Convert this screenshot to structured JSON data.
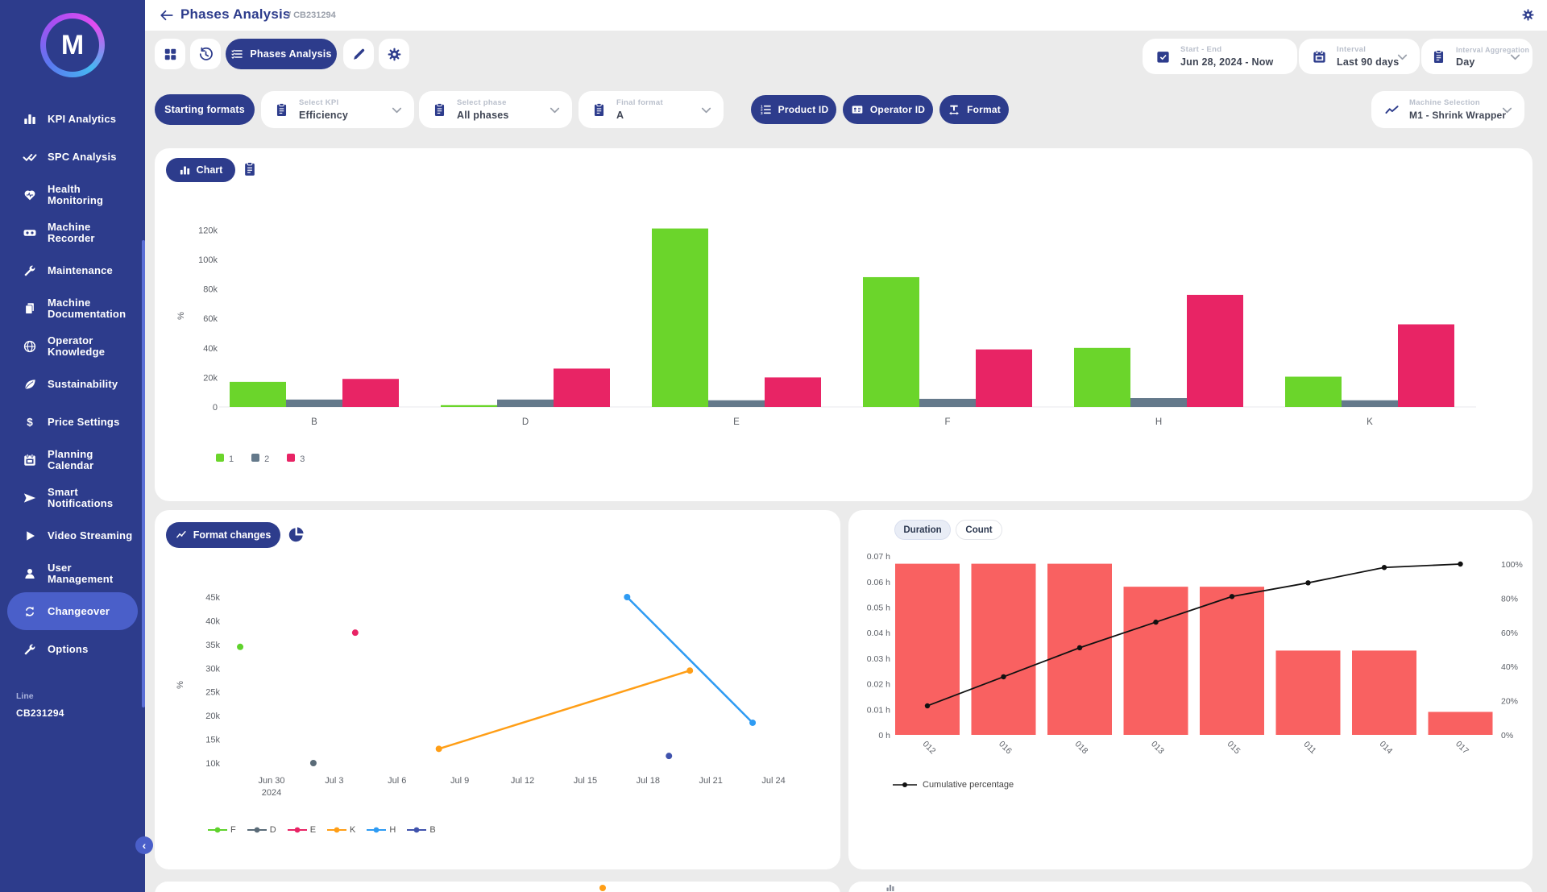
{
  "colors": {
    "accent": "#2d3c8c",
    "active_item": "#4a5fc9",
    "page_bg": "#ebebeb",
    "panel_bg": "#ffffff",
    "green": "#6bd52b",
    "slate": "#64798b",
    "pink": "#e82465",
    "pareto_red": "#f96161",
    "orange": "#ff9e16",
    "light_blue": "#2e9bf3",
    "navy": "#4053ad",
    "gray_point": "#5a6b78",
    "cumulative_line": "#111111"
  },
  "sidebar": {
    "logo_letter": "M",
    "items": [
      {
        "icon": "chart-bars",
        "label": "KPI Analytics"
      },
      {
        "icon": "double-check",
        "label": "SPC Analysis"
      },
      {
        "icon": "heart-pulse",
        "label": "Health Monitoring"
      },
      {
        "icon": "recorder",
        "label": "Machine Recorder"
      },
      {
        "icon": "wrench",
        "label": "Maintenance"
      },
      {
        "icon": "documents",
        "label": "Machine Documentation"
      },
      {
        "icon": "globe",
        "label": "Operator Knowledge"
      },
      {
        "icon": "leaf",
        "label": "Sustainability"
      },
      {
        "icon": "dollar",
        "label": "Price Settings"
      },
      {
        "icon": "calendar",
        "label": "Planning Calendar"
      },
      {
        "icon": "send",
        "label": "Smart Notifications"
      },
      {
        "icon": "play",
        "label": "Video Streaming"
      },
      {
        "icon": "user",
        "label": "User Management"
      },
      {
        "icon": "cycle",
        "label": "Changeover",
        "active": true
      },
      {
        "icon": "wrench",
        "label": "Options"
      }
    ],
    "line_label": "Line",
    "line_value": "CB231294"
  },
  "header": {
    "title": "Phases Analysis",
    "breadcrumb": "/ CB231294"
  },
  "toolbar": {
    "view_label": "Phases Analysis",
    "fields": [
      {
        "icon": "calendar-check",
        "label": "Start - End",
        "value": "Jun 28, 2024 - Now",
        "has_chevron": false
      },
      {
        "icon": "calendar",
        "label": "Interval",
        "value": "Last 90 days",
        "has_chevron": true
      },
      {
        "icon": "clipboard",
        "label": "Interval Aggregation",
        "value": "Day",
        "has_chevron": true
      }
    ]
  },
  "filters": {
    "starting_formats_label": "Starting formats",
    "selects": [
      {
        "label": "Select KPI",
        "value": "Efficiency"
      },
      {
        "label": "Select phase",
        "value": "All phases"
      },
      {
        "label": "Final format",
        "value": "A"
      }
    ],
    "group_buttons": [
      {
        "icon": "list-123",
        "label": "Product ID"
      },
      {
        "icon": "id-card",
        "label": "Operator ID"
      },
      {
        "icon": "format-t",
        "label": "Format"
      }
    ],
    "machine": {
      "label": "Machine Selection",
      "value": "M1 - Shrink Wrapper"
    }
  },
  "panels": {
    "chart_button": "Chart",
    "format_changes_button": "Format changes",
    "duration_button": "Duration",
    "count_button": "Count",
    "cumulative_legend": "Cumulative percentage"
  },
  "chart_data": [
    {
      "id": "phases_bar",
      "type": "bar",
      "categories": [
        "B",
        "D",
        "E",
        "F",
        "H",
        "K"
      ],
      "series": [
        {
          "name": "1",
          "color": "#6bd52b",
          "values": [
            17000,
            1200,
            121000,
            88000,
            40000,
            20500
          ]
        },
        {
          "name": "2",
          "color": "#64798b",
          "values": [
            5000,
            5000,
            4500,
            5500,
            6000,
            4500
          ]
        },
        {
          "name": "3",
          "color": "#e82465",
          "values": [
            19000,
            26000,
            20000,
            39000,
            76000,
            56000
          ]
        }
      ],
      "ylabel": "%",
      "ylim": [
        0,
        130000
      ],
      "yticks": [
        0,
        20000,
        40000,
        60000,
        80000,
        100000,
        120000
      ],
      "ytick_labels": [
        "0",
        "20k",
        "40k",
        "60k",
        "80k",
        "100k",
        "120k"
      ],
      "grid": false,
      "legend_position": "bottom-left"
    },
    {
      "id": "format_changes",
      "type": "scatter",
      "x_axis_note": "days after Jun 28, 2024",
      "xlim": [
        0,
        28
      ],
      "xticks": [
        2,
        5,
        8,
        11,
        14,
        17,
        20,
        23,
        26
      ],
      "xtick_labels": [
        "Jun 30|2024",
        "Jul 3",
        "Jul 6",
        "Jul 9",
        "Jul 12",
        "Jul 15",
        "Jul 18",
        "Jul 21",
        "Jul 24"
      ],
      "ylabel": "%",
      "ylim": [
        10000,
        45000
      ],
      "yticks": [
        10000,
        15000,
        20000,
        25000,
        30000,
        35000,
        40000,
        45000
      ],
      "ytick_labels": [
        "10k",
        "15k",
        "20k",
        "25k",
        "30k",
        "35k",
        "40k",
        "45k"
      ],
      "series": [
        {
          "name": "F",
          "color": "#5fd22c",
          "points": [
            [
              0.5,
              34500
            ]
          ]
        },
        {
          "name": "D",
          "color": "#5a6b78",
          "points": [
            [
              4,
              10000
            ]
          ]
        },
        {
          "name": "E",
          "color": "#e82465",
          "points": [
            [
              6,
              37500
            ]
          ]
        },
        {
          "name": "K",
          "color": "#ff9e16",
          "points": [
            [
              10,
              13000
            ],
            [
              22,
              29500
            ]
          ]
        },
        {
          "name": "H",
          "color": "#2e9bf3",
          "points": [
            [
              19,
              45000
            ],
            [
              25,
              18500
            ]
          ]
        },
        {
          "name": "B",
          "color": "#4053ad",
          "points": [
            [
              21,
              11500
            ]
          ]
        }
      ]
    },
    {
      "id": "pareto",
      "type": "pareto",
      "categories": [
        "012",
        "016",
        "018",
        "013",
        "015",
        "011",
        "014",
        "017"
      ],
      "bar_unit": "h",
      "bar_values": [
        0.067,
        0.067,
        0.067,
        0.058,
        0.058,
        0.033,
        0.033,
        0.009
      ],
      "bar_color": "#f96161",
      "cumulative_percent": [
        17,
        34,
        51,
        66,
        81,
        89,
        98,
        100
      ],
      "left_yticks": [
        0,
        0.01,
        0.02,
        0.03,
        0.04,
        0.05,
        0.06,
        0.07
      ],
      "left_ytick_labels": [
        "0 h",
        "0.01 h",
        "0.02 h",
        "0.03 h",
        "0.04 h",
        "0.05 h",
        "0.06 h",
        "0.07 h"
      ],
      "right_yticks": [
        0,
        20,
        40,
        60,
        80,
        100
      ],
      "right_ytick_labels": [
        "0%",
        "20%",
        "40%",
        "60%",
        "80%",
        "100%"
      ],
      "line_color": "#111111",
      "toggle_selected": "Duration"
    }
  ]
}
